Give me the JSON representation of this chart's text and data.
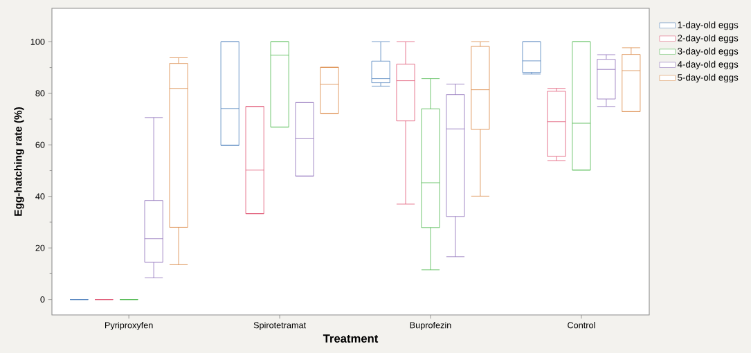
{
  "chart_data": {
    "type": "box",
    "xlabel": "Treatment",
    "ylabel": "Egg-hatching rate (%)",
    "categories": [
      "Pyriproxyfen",
      "Spirotetramat",
      "Buprofezin",
      "Control"
    ],
    "ylim": [
      -6,
      113
    ],
    "yticks": [
      0,
      {
        "value": 10,
        "label": null
      },
      20,
      {
        "value": 30,
        "label": null
      },
      40,
      {
        "value": 50,
        "label": null
      },
      60,
      {
        "value": 70,
        "label": null
      },
      80,
      {
        "value": 90,
        "label": null
      },
      100
    ],
    "legend": "right",
    "grid": false,
    "series": [
      {
        "name": "1-day-old eggs",
        "color": "#4a7ebb",
        "boxes": [
          {
            "low": 0,
            "q1": 0,
            "median": 0,
            "q3": 0,
            "high": 0
          },
          {
            "low": 59.8,
            "q1": 59.8,
            "median": 74.1,
            "q3": 100,
            "high": 100
          },
          {
            "low": 82.8,
            "q1": 84.1,
            "median": 85.7,
            "q3": 92.5,
            "high": 100
          },
          {
            "low": 87.5,
            "q1": 88.1,
            "median": 92.6,
            "q3": 100,
            "high": 100
          }
        ]
      },
      {
        "name": "2-day-old eggs",
        "color": "#e05070",
        "boxes": [
          {
            "low": 0,
            "q1": 0,
            "median": 0,
            "q3": 0,
            "high": 0
          },
          {
            "low": 33.3,
            "q1": 33.3,
            "median": 50.2,
            "q3": 74.9,
            "high": 74.9
          },
          {
            "low": 37.0,
            "q1": 69.3,
            "median": 84.9,
            "q3": 91.3,
            "high": 100
          },
          {
            "low": 53.9,
            "q1": 55.5,
            "median": 69.0,
            "q3": 80.8,
            "high": 81.9
          }
        ]
      },
      {
        "name": "3-day-old eggs",
        "color": "#4db84d",
        "boxes": [
          {
            "low": 0,
            "q1": 0,
            "median": 0,
            "q3": 0,
            "high": 0
          },
          {
            "low": 66.9,
            "q1": 66.9,
            "median": 94.8,
            "q3": 100,
            "high": 100
          },
          {
            "low": 11.5,
            "q1": 27.9,
            "median": 45.3,
            "q3": 74.0,
            "high": 85.7
          },
          {
            "low": 50.2,
            "q1": 50.2,
            "median": 68.4,
            "q3": 100,
            "high": 100
          }
        ]
      },
      {
        "name": "4-day-old eggs",
        "color": "#8a6bb8",
        "boxes": [
          {
            "low": 8.4,
            "q1": 14.4,
            "median": 23.6,
            "q3": 38.4,
            "high": 70.6
          },
          {
            "low": 47.9,
            "q1": 47.9,
            "median": 62.4,
            "q3": 76.4,
            "high": 76.4
          },
          {
            "low": 16.6,
            "q1": 32.2,
            "median": 66.2,
            "q3": 79.5,
            "high": 83.6
          },
          {
            "low": 74.9,
            "q1": 77.8,
            "median": 89.3,
            "q3": 93.2,
            "high": 95.0
          }
        ]
      },
      {
        "name": "5-day-old eggs",
        "color": "#d9843f",
        "boxes": [
          {
            "low": 13.5,
            "q1": 28.0,
            "median": 81.9,
            "q3": 91.6,
            "high": 93.8
          },
          {
            "low": 72.2,
            "q1": 72.2,
            "median": 83.5,
            "q3": 90.1,
            "high": 90.1
          },
          {
            "low": 40.1,
            "q1": 66.0,
            "median": 81.4,
            "q3": 98.2,
            "high": 100
          },
          {
            "low": 72.9,
            "q1": 72.9,
            "median": 88.8,
            "q3": 95.1,
            "high": 97.7
          }
        ]
      }
    ]
  }
}
